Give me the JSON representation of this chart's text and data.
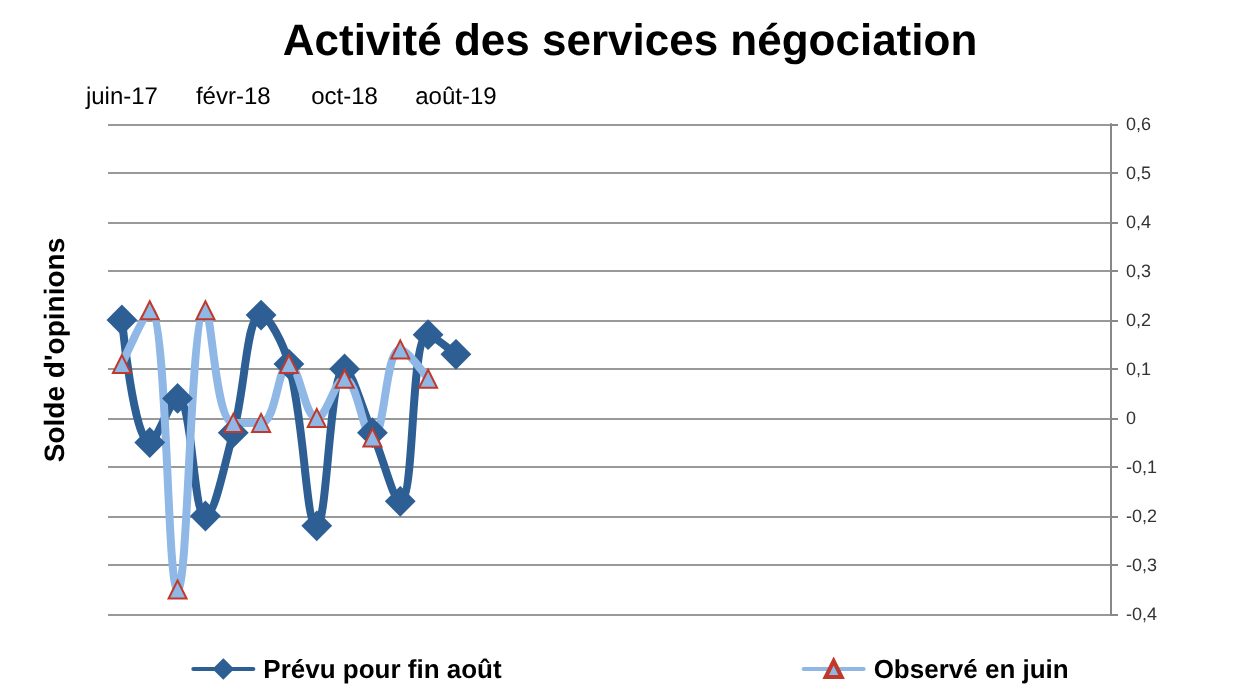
{
  "chart_data": {
    "type": "line",
    "title": "Activité des services négociation",
    "ylabel": "Solde d'opinions",
    "categories": [
      "juin-17",
      null,
      null,
      null,
      "févr-18",
      null,
      null,
      null,
      "oct-18",
      null,
      null,
      null,
      "août-19",
      null,
      null,
      null,
      null,
      null,
      null,
      null,
      null,
      null,
      null,
      null,
      null,
      null,
      null,
      null,
      null,
      null,
      null,
      null,
      null,
      null,
      null,
      null
    ],
    "series": [
      {
        "name": "Prévu pour fin août",
        "color": "#2e5f94",
        "marker": "diamond",
        "values": [
          0.2,
          -0.05,
          0.04,
          -0.2,
          -0.03,
          0.21,
          0.11,
          -0.22,
          0.1,
          -0.03,
          -0.17,
          0.17,
          0.13,
          null,
          null,
          null,
          null,
          null,
          null,
          null,
          null,
          null,
          null,
          null,
          null,
          null,
          null,
          null,
          null,
          null,
          null,
          null,
          null,
          null,
          null,
          null
        ]
      },
      {
        "name": "Observé en juin",
        "color": "#8fb8e6",
        "marker": "triangle",
        "values": [
          0.11,
          0.22,
          -0.35,
          0.22,
          -0.01,
          -0.01,
          0.11,
          0.0,
          0.08,
          -0.04,
          0.14,
          0.08,
          null,
          null,
          null,
          null,
          null,
          null,
          null,
          null,
          null,
          null,
          null,
          null,
          null,
          null,
          null,
          null,
          null,
          null,
          null,
          null,
          null,
          null,
          null,
          null
        ]
      }
    ],
    "ylim": [
      -0.4,
      0.6
    ],
    "yticks": [
      {
        "value": -0.4,
        "label": "-0,4"
      },
      {
        "value": -0.3,
        "label": "-0,3"
      },
      {
        "value": -0.2,
        "label": "-0,2"
      },
      {
        "value": -0.1,
        "label": "-0,1"
      },
      0,
      {
        "value": 0.1,
        "label": "0,1"
      },
      {
        "value": 0.2,
        "label": "0,2"
      },
      {
        "value": 0.3,
        "label": "0,3"
      },
      {
        "value": 0.4,
        "label": "0,4"
      },
      {
        "value": 0.5,
        "label": "0,5"
      },
      {
        "value": 0.6,
        "label": "0,6"
      }
    ],
    "grid": "y",
    "legend": "bottom"
  }
}
